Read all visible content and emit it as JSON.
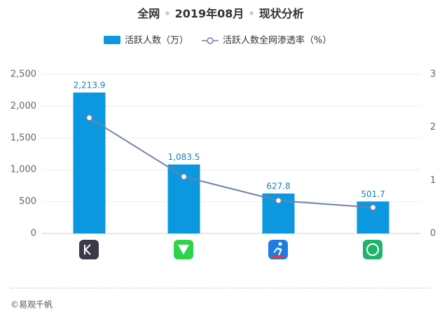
{
  "chart_data": {
    "type": "bar_line",
    "title_parts": [
      "全网",
      "2019年08月",
      "现状分析"
    ],
    "categories": [
      null,
      null,
      null,
      null
    ],
    "series": [
      {
        "name": "活跃人数（万）",
        "color": "#0c98df",
        "values": [
          2213.9,
          1083.5,
          627.8,
          501.7
        ],
        "value_labels": [
          "2,213.9",
          "1,083.5",
          "627.8",
          "501.7"
        ]
      },
      {
        "name": "活跃人数全网渗透率（%）",
        "color": "#6f80a8",
        "axis": "y2",
        "values": [
          2.18,
          1.07,
          0.62,
          0.49
        ]
      }
    ],
    "ylim": [
      0,
      2500
    ],
    "yticks": [
      0,
      500,
      {
        "value": 1000,
        "label": "1,000"
      },
      {
        "value": 1500,
        "label": "1,500"
      },
      {
        "value": 2000,
        "label": "2,000"
      },
      {
        "value": 2500,
        "label": "2,500"
      }
    ],
    "y2lim": [
      0,
      3
    ],
    "y2ticks": [
      0,
      1,
      2,
      3
    ],
    "grid": true,
    "source": "©易观千帆"
  }
}
